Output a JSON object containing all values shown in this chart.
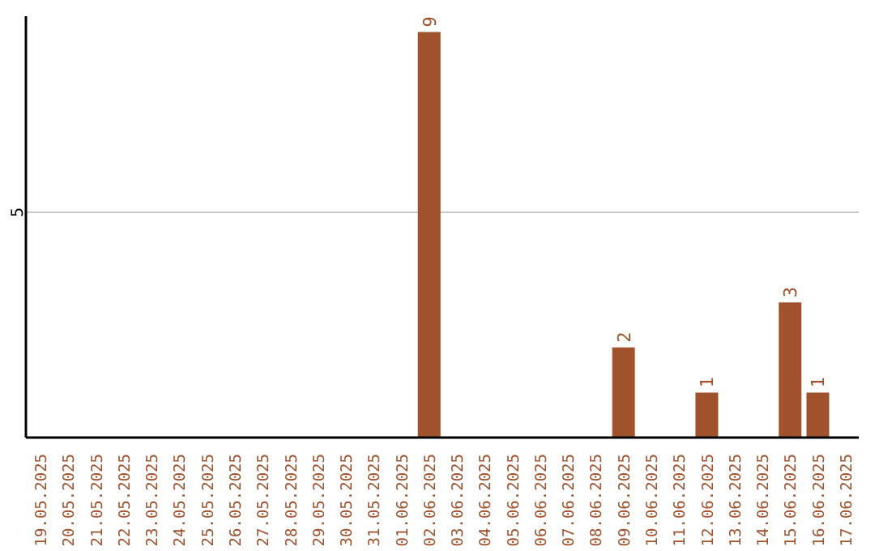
{
  "chart_data": {
    "type": "bar",
    "categories": [
      "19.05.2025",
      "20.05.2025",
      "21.05.2025",
      "22.05.2025",
      "23.05.2025",
      "24.05.2025",
      "25.05.2025",
      "26.05.2025",
      "27.05.2025",
      "28.05.2025",
      "29.05.2025",
      "30.05.2025",
      "31.05.2025",
      "01.06.2025",
      "02.06.2025",
      "03.06.2025",
      "04.06.2025",
      "05.06.2025",
      "06.06.2025",
      "07.06.2025",
      "08.06.2025",
      "09.06.2025",
      "10.06.2025",
      "11.06.2025",
      "12.06.2025",
      "13.06.2025",
      "14.06.2025",
      "15.06.2025",
      "16.06.2025",
      "17.06.2025"
    ],
    "values": [
      null,
      null,
      null,
      null,
      null,
      null,
      null,
      null,
      null,
      null,
      null,
      null,
      null,
      null,
      9,
      null,
      null,
      null,
      null,
      null,
      null,
      2,
      null,
      null,
      1,
      null,
      null,
      3,
      1,
      null
    ],
    "data_labels": true,
    "color": "#a0522d",
    "ylim": [
      0,
      9.35
    ],
    "yticks": [
      5
    ],
    "grid": "y"
  }
}
